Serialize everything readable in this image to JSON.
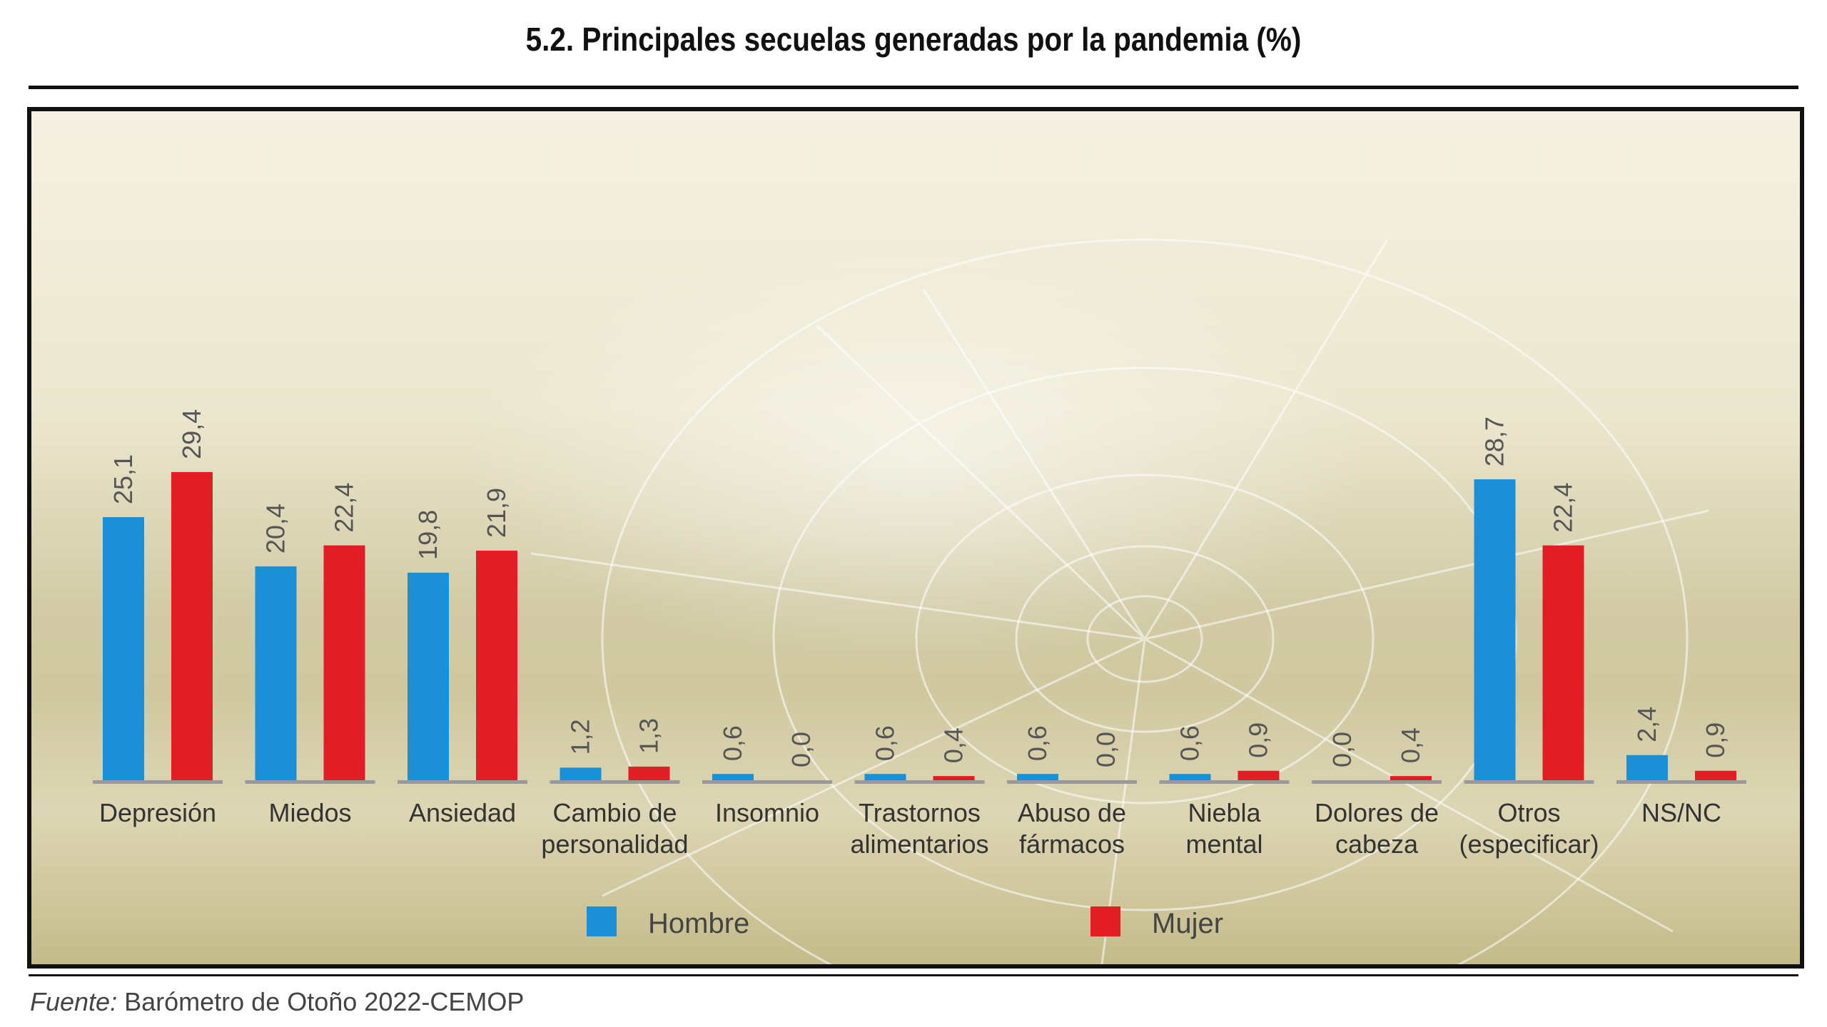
{
  "title": "5.2. Principales secuelas generadas por la pandemia (%)",
  "source": {
    "label": "Fuente:",
    "text": "Barómetro de Otoño 2022-CEMOP"
  },
  "colors": {
    "hombre": "#1b8fd8",
    "mujer": "#e21d26",
    "axis": "#9a9a9a",
    "value_text": "#555555",
    "label_text": "#333333"
  },
  "chart_data": {
    "type": "bar",
    "title": "5.2. Principales secuelas generadas por la pandemia (%)",
    "xlabel": "",
    "ylabel": "",
    "ylim": [
      0,
      30
    ],
    "grid": false,
    "legend": "bottom",
    "categories": [
      [
        "Depresión"
      ],
      [
        "Miedos"
      ],
      [
        "Ansiedad"
      ],
      [
        "Cambio de",
        "personalidad"
      ],
      [
        "Insomnio"
      ],
      [
        "Trastornos",
        "alimentarios"
      ],
      [
        "Abuso de",
        "fármacos"
      ],
      [
        "Niebla",
        "mental"
      ],
      [
        "Dolores de",
        "cabeza"
      ],
      [
        "Otros",
        "(especificar)"
      ],
      [
        "NS/NC"
      ]
    ],
    "series": [
      {
        "name": "Hombre",
        "values": [
          25.1,
          20.4,
          19.8,
          1.2,
          0.6,
          0.6,
          0.6,
          0.6,
          0.0,
          28.7,
          2.4
        ],
        "labels": [
          "25,1",
          "20,4",
          "19,8",
          "1,2",
          "0,6",
          "0,6",
          "0,6",
          "0,6",
          "0,0",
          "28,7",
          "2,4"
        ]
      },
      {
        "name": "Mujer",
        "values": [
          29.4,
          22.4,
          21.9,
          1.3,
          0.0,
          0.4,
          0.0,
          0.9,
          0.4,
          22.4,
          0.9
        ],
        "labels": [
          "29,4",
          "22,4",
          "21,9",
          "1,3",
          "0,0",
          "0,4",
          "0,0",
          "0,9",
          "0,4",
          "22,4",
          "0,9"
        ]
      }
    ]
  }
}
